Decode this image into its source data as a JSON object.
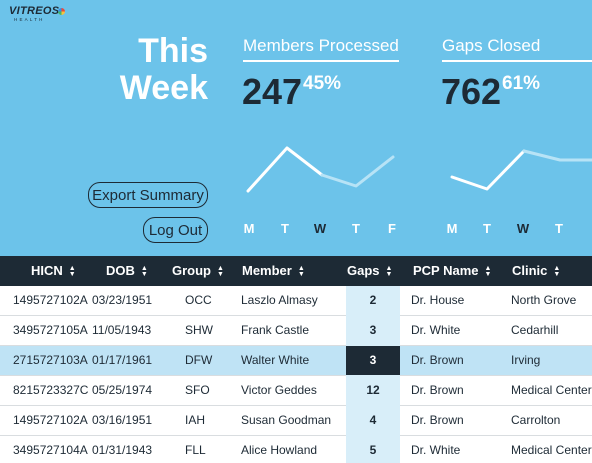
{
  "logo": {
    "word": "VITREOS",
    "sub": "HEALTH"
  },
  "title": {
    "line1": "This",
    "line2": "Week"
  },
  "buttons": {
    "export": "Export Summary",
    "logout": "Log Out"
  },
  "stats": {
    "members": {
      "label": "Members Processed",
      "value": "247",
      "percent": "45%",
      "days": [
        "M",
        "T",
        "W",
        "T",
        "F"
      ],
      "active_day_index": 2
    },
    "gaps": {
      "label": "Gaps Closed",
      "value": "762",
      "percent": "61%",
      "days": [
        "M",
        "T",
        "W",
        "T"
      ],
      "active_day_index": 2
    }
  },
  "table": {
    "headers": {
      "hicn": "HICN",
      "dob": "DOB",
      "group": "Group",
      "member": "Member",
      "gaps": "Gaps",
      "pcp": "PCP Name",
      "clinic": "Clinic"
    },
    "rows": [
      {
        "hicn": "1495727102A",
        "dob": "03/23/1951",
        "group": "OCC",
        "member": "Laszlo Almasy",
        "gaps": "2",
        "pcp": "Dr. House",
        "clinic": "North Grove"
      },
      {
        "hicn": "3495727105A",
        "dob": "11/05/1943",
        "group": "SHW",
        "member": "Frank Castle",
        "gaps": "3",
        "pcp": "Dr. White",
        "clinic": "Cedarhill"
      },
      {
        "hicn": "2715727103A",
        "dob": "01/17/1961",
        "group": "DFW",
        "member": "Walter White",
        "gaps": "3",
        "pcp": "Dr. Brown",
        "clinic": "Irving"
      },
      {
        "hicn": "8215723327C",
        "dob": "05/25/1974",
        "group": "SFO",
        "member": "Victor Geddes",
        "gaps": "12",
        "pcp": "Dr. Brown",
        "clinic": "Medical Center"
      },
      {
        "hicn": "1495727102A",
        "dob": "03/16/1951",
        "group": "IAH",
        "member": "Susan Goodman",
        "gaps": "4",
        "pcp": "Dr. Brown",
        "clinic": "Carrolton"
      },
      {
        "hicn": "3495727104A",
        "dob": "01/31/1943",
        "group": "FLL",
        "member": "Alice Howland",
        "gaps": "5",
        "pcp": "Dr. White",
        "clinic": "Medical Center"
      }
    ],
    "selected_row_index": 2
  },
  "colors": {
    "header_bg": "#6cc3ea",
    "dark": "#1d2a35",
    "accent_light": "#d8eef9",
    "row_selected": "#bfe3f5"
  }
}
